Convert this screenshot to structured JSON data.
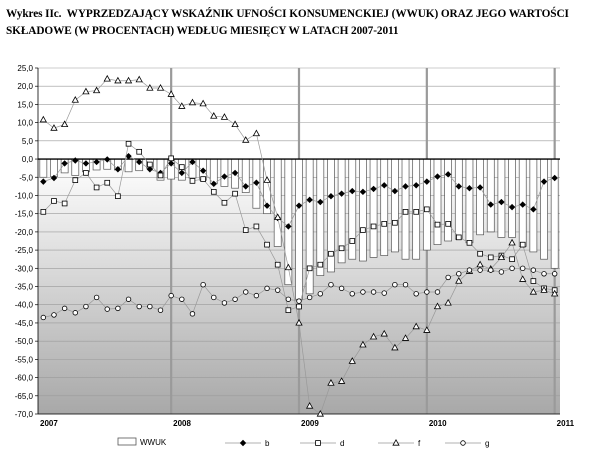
{
  "figure": {
    "label": "Wykres IIc.",
    "title_line1": "WYPRZEDZAJĄCY WSKAŹNIK UFNOŚCI KONSUMENCKIEJ (WWUK) ORAZ JEGO WARTOŚCI",
    "title_line2": "SKŁADOWE (W PROCENTACH) WEDŁUG MIESIĘCY W LATACH 2007-2011"
  },
  "colors": {
    "bar_fill": "#ffffff",
    "bar_stroke": "#555555",
    "grid": "#9a9a9a",
    "series_line": "#999999",
    "marker": "#000000",
    "zero_line": "#000000",
    "bg_top": "#ffffff",
    "bg_bottom": "#a8a8a8"
  },
  "chart_data": {
    "type": "bar",
    "title": "",
    "xlabel": "",
    "ylabel": "",
    "ylim": [
      -70,
      25
    ],
    "ytick_step": 5,
    "yticks": [
      "25,0",
      "20,0",
      "15,0",
      "10,0",
      "5,0",
      "0,0",
      "-5,0",
      "-10,0",
      "-15,0",
      "-20,0",
      "-25,0",
      "-30,0",
      "-35,0",
      "-40,0",
      "-45,0",
      "-50,0",
      "-55,0",
      "-60,0",
      "-65,0",
      "-70,0"
    ],
    "year_labels": [
      "2007",
      "2008",
      "2009",
      "2010",
      "2011"
    ],
    "categories": [
      "2007-01",
      "2007-02",
      "2007-03",
      "2007-04",
      "2007-05",
      "2007-06",
      "2007-07",
      "2007-08",
      "2007-09",
      "2007-10",
      "2007-11",
      "2007-12",
      "2008-01",
      "2008-02",
      "2008-03",
      "2008-04",
      "2008-05",
      "2008-06",
      "2008-07",
      "2008-08",
      "2008-09",
      "2008-10",
      "2008-11",
      "2008-12",
      "2009-01",
      "2009-02",
      "2009-03",
      "2009-04",
      "2009-05",
      "2009-06",
      "2009-07",
      "2009-08",
      "2009-09",
      "2009-10",
      "2009-11",
      "2009-12",
      "2010-01",
      "2010-02",
      "2010-03",
      "2010-04",
      "2010-05",
      "2010-06",
      "2010-07",
      "2010-08",
      "2010-09",
      "2010-10",
      "2010-11",
      "2010-12",
      "2011-01"
    ],
    "grid": true,
    "legend_position": "bottom",
    "series": [
      {
        "name": "WWUK",
        "type": "bar",
        "values": [
          -5.0,
          -4.8,
          -3.8,
          -4.5,
          -3.5,
          -3.0,
          -2.8,
          -3.0,
          -3.5,
          -3.2,
          -2.5,
          -5.8,
          -5.5,
          -5.8,
          -5.2,
          -5.8,
          -6.8,
          -7.5,
          -8.0,
          -9.2,
          -13.5,
          -15.0,
          -24.0,
          -34.5,
          -38.5,
          -37.0,
          -32.0,
          -31.0,
          -28.5,
          -27.5,
          -28.0,
          -27.0,
          -26.5,
          -25.5,
          -27.5,
          -27.5,
          -25.0,
          -23.5,
          -22.5,
          -22.0,
          -23.0,
          -20.8,
          -20.0,
          -21.5,
          -21.5,
          -24.0,
          -25.5,
          -27.5,
          -30.0
        ]
      },
      {
        "name": "b",
        "type": "line",
        "marker": "diamond-filled",
        "values": [
          -6.2,
          -5.2,
          -1.2,
          -0.4,
          -1.2,
          -0.8,
          -0.1,
          -2.8,
          0.8,
          -0.8,
          -2.8,
          -3.8,
          -1.2,
          -3.8,
          -0.8,
          -3.2,
          -6.8,
          -4.8,
          -3.8,
          -7.5,
          -6.5,
          -12.8,
          -16.2,
          -18.5,
          -12.8,
          -11.2,
          -11.8,
          -10.2,
          -9.5,
          -8.8,
          -9.0,
          -8.2,
          -7.2,
          -8.8,
          -7.5,
          -7.2,
          -6.2,
          -4.8,
          -4.2,
          -7.5,
          -8.0,
          -7.8,
          -12.5,
          -11.8,
          -13.2,
          -12.5,
          -13.8,
          -6.2,
          -5.2
        ]
      },
      {
        "name": "d",
        "type": "line",
        "marker": "square-open",
        "values": [
          -14.5,
          -11.5,
          -12.2,
          -5.8,
          -3.8,
          -7.8,
          -6.5,
          -10.2,
          4.2,
          2.0,
          -1.5,
          -4.5,
          0.2,
          -2.2,
          -6.0,
          -5.5,
          -9.0,
          -12.0,
          -9.5,
          -19.5,
          -18.5,
          -23.5,
          -29.0,
          -41.5,
          -40.5,
          -30.0,
          -29.0,
          -26.0,
          -24.5,
          -22.5,
          -19.5,
          -18.5,
          -17.8,
          -17.5,
          -14.5,
          -14.5,
          -13.8,
          -18.0,
          -17.8,
          -21.5,
          -23.0,
          -26.0,
          -27.0,
          -26.5,
          -27.5,
          -23.5,
          -33.5,
          -35.5,
          -36.0
        ]
      },
      {
        "name": "f",
        "type": "line",
        "marker": "triangle-open",
        "values": [
          10.8,
          8.5,
          9.5,
          16.2,
          18.5,
          18.8,
          22.0,
          21.5,
          21.5,
          21.8,
          19.5,
          19.5,
          17.8,
          14.5,
          15.5,
          15.2,
          11.8,
          11.5,
          9.5,
          5.2,
          7.0,
          -5.8,
          -16.0,
          -29.8,
          -45.0,
          -67.8,
          -70.0,
          -61.5,
          -61.0,
          -55.5,
          -51.0,
          -48.8,
          -48.0,
          -51.8,
          -49.2,
          -46.0,
          -47.0,
          -40.5,
          -39.5,
          -33.5,
          -30.8,
          -29.0,
          -30.2,
          -27.0,
          -23.0,
          -33.0,
          -36.5,
          -36.0,
          -37.0
        ]
      },
      {
        "name": "g",
        "type": "line",
        "marker": "circle-open",
        "values": [
          -43.5,
          -42.8,
          -41.0,
          -42.2,
          -40.5,
          -38.0,
          -41.2,
          -41.0,
          -38.5,
          -40.5,
          -40.5,
          -41.5,
          -37.5,
          -38.5,
          -42.5,
          -34.5,
          -38.0,
          -39.5,
          -38.5,
          -36.5,
          -37.5,
          -35.5,
          -36.0,
          -38.5,
          -39.0,
          -38.0,
          -37.0,
          -34.5,
          -35.5,
          -37.0,
          -36.5,
          -36.5,
          -36.8,
          -34.5,
          -34.5,
          -37.0,
          -36.5,
          -36.5,
          -32.5,
          -31.5,
          -30.5,
          -30.5,
          -30.5,
          -31.0,
          -30.0,
          -30.0,
          -30.5,
          -31.5,
          -31.5
        ]
      }
    ]
  }
}
